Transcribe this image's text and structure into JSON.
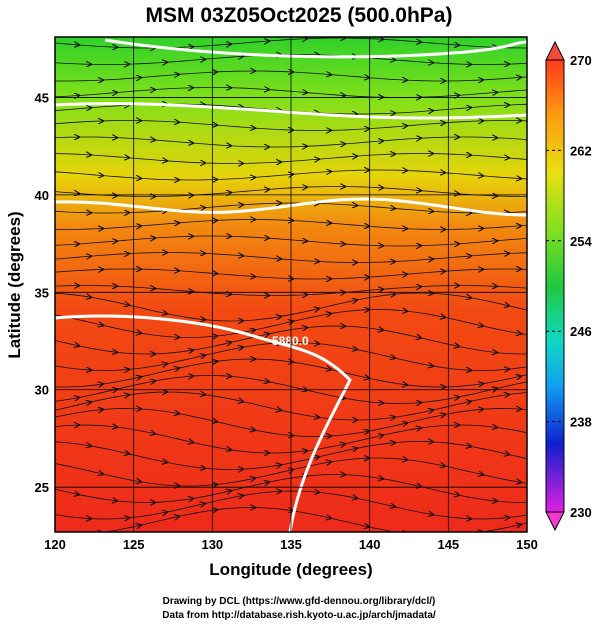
{
  "map": {
    "title": "MSM 03Z05Oct2025 (500.0hPa)",
    "x_label": "Longitude (degrees)",
    "y_label": "Latitude  (degrees)",
    "xlim": [
      120,
      150
    ],
    "xticks": [
      120,
      125,
      130,
      135,
      140,
      145,
      150
    ],
    "ylim": [
      22.7,
      48.1
    ],
    "yticks": [
      25,
      30,
      35,
      40,
      45
    ],
    "contour_label": "5880.0",
    "colorbar": {
      "lim": [
        230,
        270
      ],
      "ticks": [
        230,
        238,
        246,
        254,
        262,
        270
      ]
    },
    "credits": [
      "Drawing by DCL (https://www.gfd-dennou.org/library/dcl/)",
      "Data from http://database.rish.kyoto-u.ac.jp/arch/jmadata/"
    ]
  }
}
